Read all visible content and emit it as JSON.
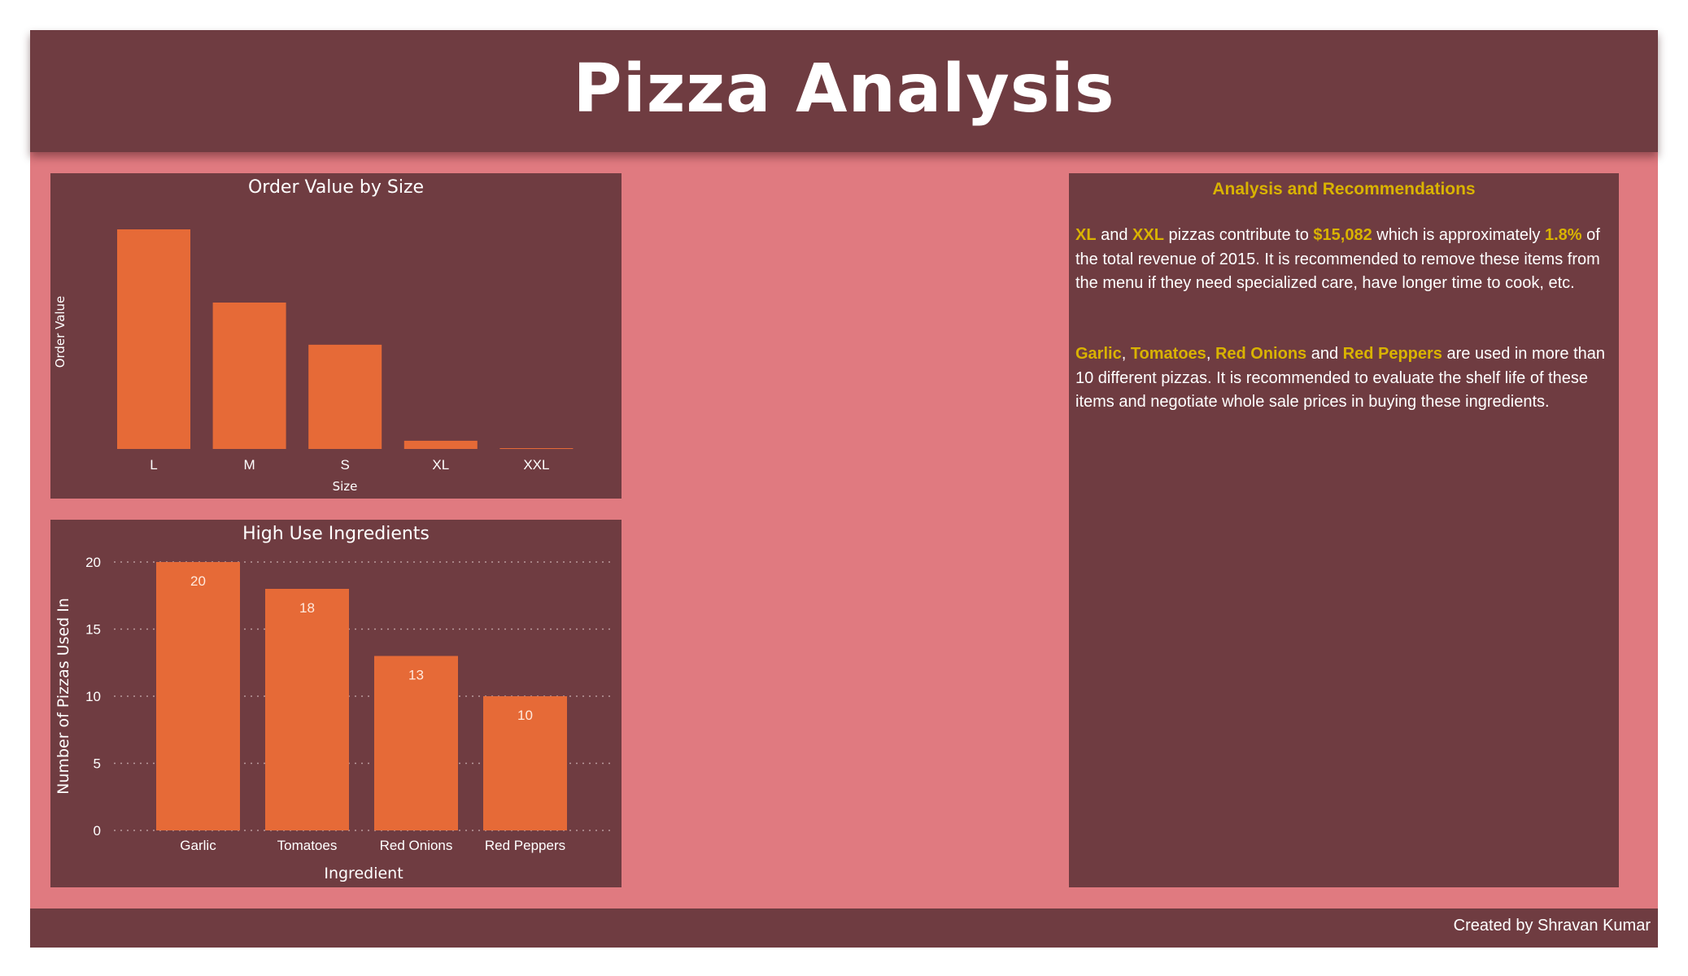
{
  "header": {
    "title": "Pizza Analysis"
  },
  "chart_data": [
    {
      "type": "bar",
      "title": "Order Value by Size",
      "xlabel": "Size",
      "ylabel": "Order Value",
      "categories": [
        "L",
        "M",
        "S",
        "XL",
        "XXL"
      ],
      "values": [
        375000,
        250000,
        178000,
        14000,
        1000
      ],
      "ylim": [
        0,
        375000
      ],
      "grid": false,
      "bar_color": "#e66a37"
    },
    {
      "type": "bar",
      "title": "High Use Ingredients",
      "xlabel": "Ingredient",
      "ylabel": "Number of Pizzas Used In",
      "categories": [
        "Garlic",
        "Tomatoes",
        "Red Onions",
        "Red Peppers"
      ],
      "values": [
        20,
        18,
        13,
        10
      ],
      "data_labels": [
        "20",
        "18",
        "13",
        "10"
      ],
      "y_ticks": [
        "0",
        "5",
        "10",
        "15",
        "20"
      ],
      "ylim": [
        0,
        20
      ],
      "grid": true,
      "bar_color": "#e66a37"
    }
  ],
  "analysis": {
    "title": "Analysis and Recommendations",
    "p1": {
      "xl": "XL",
      "and1": " and ",
      "xxl": "XXL",
      "t1": " pizzas contribute to ",
      "amount": "$15,082",
      "t2": " which is approximately ",
      "pct": "1.8%",
      "t3": " of the total revenue of 2015. It is recommended to remove these items from the menu if they need specialized care, have longer time to cook, etc."
    },
    "p2": {
      "i1": "Garlic",
      "c1": ", ",
      "i2": "Tomatoes",
      "c2": ", ",
      "i3": "Red Onions",
      "and": " and ",
      "i4": "Red Peppers",
      "rest": " are used in more than 10 different pizzas. It is recommended to evaluate the shelf life of these items and negotiate whole sale prices in buying these ingredients."
    }
  },
  "footer": {
    "credit": "Created by Shravan Kumar"
  },
  "colors": {
    "background": "#e07a80",
    "panel": "#6f3c41",
    "bar": "#e66a37",
    "highlight": "#d9b300"
  }
}
